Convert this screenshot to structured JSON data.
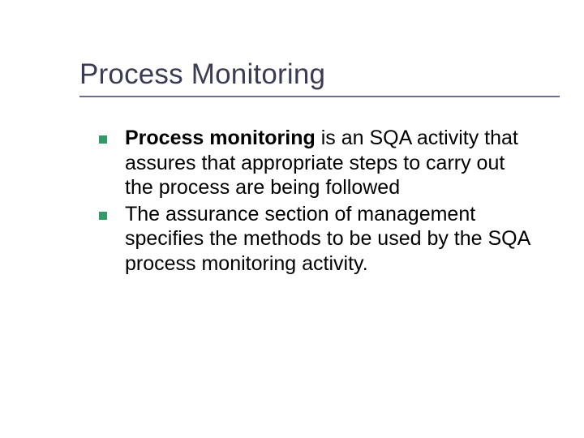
{
  "slide": {
    "title": "Process Monitoring",
    "title_color": "#3b3b54",
    "underline_color": "#6b6b94",
    "bullet_color": "#339966",
    "background_color": "#ffffff",
    "text_color": "#000000",
    "title_fontsize": 35,
    "body_fontsize": 25,
    "bullets": [
      {
        "bold_lead": "Process monitoring",
        "rest": " is an SQA activity that assures that appropriate steps to carry out the process are being followed"
      },
      {
        "bold_lead": "",
        "rest": "The assurance section of management specifies the methods to be used by the SQA process monitoring activity."
      }
    ]
  }
}
